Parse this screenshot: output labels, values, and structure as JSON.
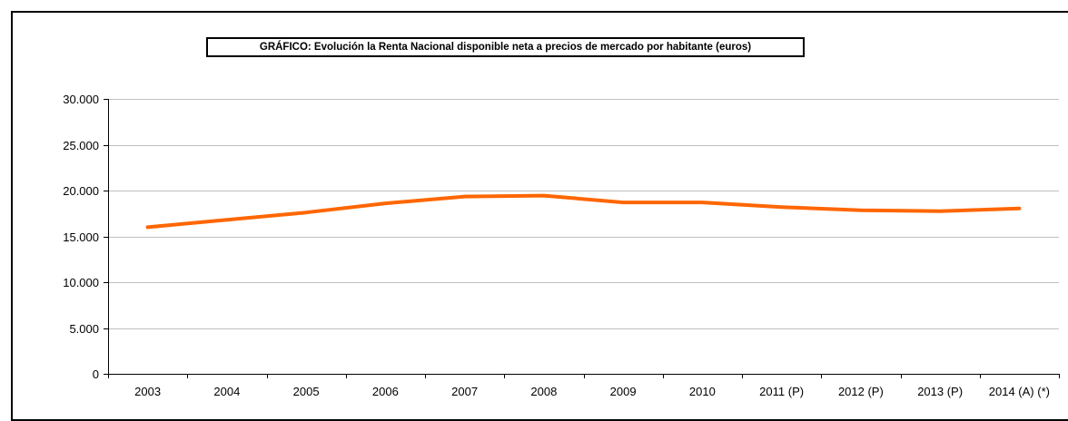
{
  "chart_data": {
    "type": "line",
    "title": "GRÁFICO: Evolución la Renta Nacional disponible neta a precios de mercado por habitante (euros)",
    "categories": [
      "2003",
      "2004",
      "2005",
      "2006",
      "2007",
      "2008",
      "2009",
      "2010",
      "2011 (P)",
      "2012 (P)",
      "2013 (P)",
      "2014 (A) (*)"
    ],
    "series": [
      {
        "values": [
          16000,
          16800,
          17600,
          18600,
          19350,
          19450,
          18700,
          18700,
          18200,
          17850,
          17750,
          18050
        ]
      }
    ],
    "ylim": [
      0,
      30000
    ],
    "yticks": [
      0,
      5000,
      10000,
      15000,
      20000,
      25000,
      30000
    ],
    "ytick_labels": [
      "0",
      "5.000",
      "10.000",
      "15.000",
      "20.000",
      "25.000",
      "30.000"
    ],
    "xlabel": "",
    "ylabel": "",
    "grid": true,
    "line_color": "#ff6600",
    "grid_color": "#c0c0c0"
  }
}
